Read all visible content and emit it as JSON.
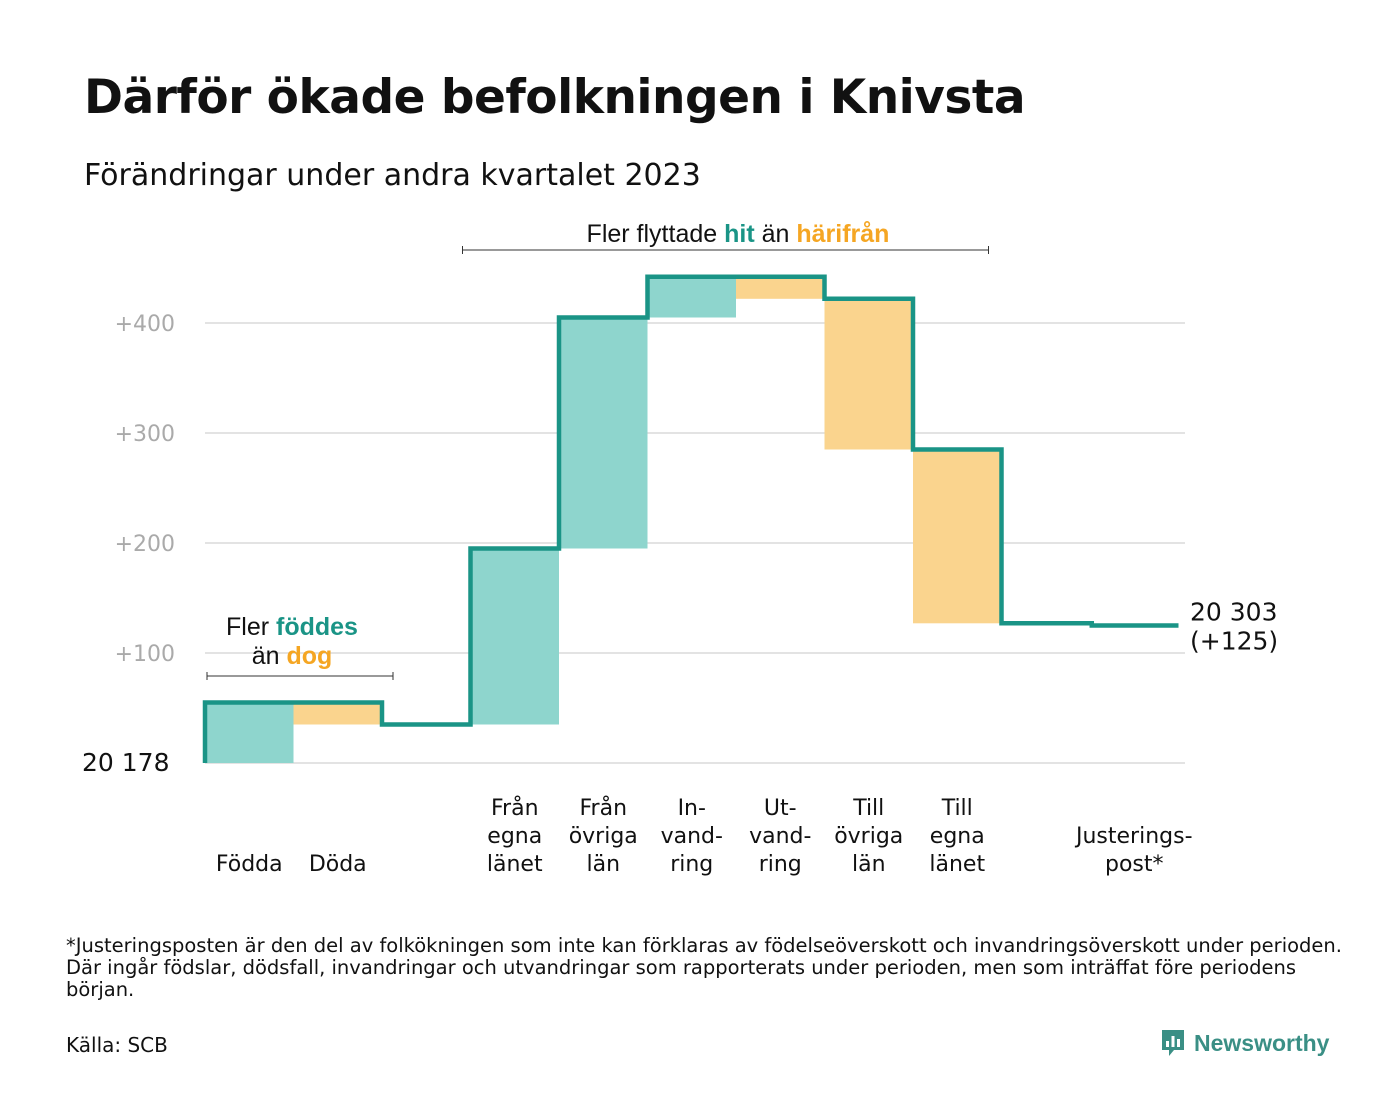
{
  "title": "Därför ökade befolkningen i Knivsta",
  "subtitle": "Förändringar under andra kvartalet 2023",
  "footnote": "*Justeringsposten är den del av folkökningen som inte kan förklaras av födelseöverskott och invandringsöverskott under perioden. Där ingår födslar, dödsfall, invandringar och utvandringar som rapporterats under perioden, men som inträffat före periodens början.",
  "source": "Källa: SCB",
  "logo": {
    "text": "Newsworthy",
    "icon": "bar-chart-speech-icon"
  },
  "colors": {
    "line": "#1a9486",
    "increase": "#8ed5cd",
    "decrease": "#fad48e",
    "grid": "#e3e3e3",
    "teal_text": "#1a9486",
    "orange_text": "#f5a623"
  },
  "chart_data": {
    "type": "waterfall",
    "start_label": "20  178",
    "end_label_line1": "20 303",
    "end_label_line2": "(+125)",
    "ylim": [
      0,
      440
    ],
    "yticks": [
      {
        "value": 100,
        "label": "+100"
      },
      {
        "value": 200,
        "label": "+200"
      },
      {
        "value": 300,
        "label": "+300"
      },
      {
        "value": 400,
        "label": "+400"
      }
    ],
    "grid": true,
    "steps": [
      {
        "label": [
          "Födda"
        ],
        "change": 55,
        "kind": "increase"
      },
      {
        "label": [
          "Döda"
        ],
        "change": -20,
        "kind": "decrease"
      },
      {
        "label": [],
        "change": 0,
        "kind": "gap"
      },
      {
        "label": [
          "Från",
          "egna",
          "länet"
        ],
        "change": 160,
        "kind": "increase"
      },
      {
        "label": [
          "Från",
          "övriga",
          "län"
        ],
        "change": 210,
        "kind": "increase"
      },
      {
        "label": [
          "In-",
          "vand-",
          "ring"
        ],
        "change": 37,
        "kind": "increase"
      },
      {
        "label": [
          "Ut-",
          "vand-",
          "ring"
        ],
        "change": -20,
        "kind": "decrease"
      },
      {
        "label": [
          "Till",
          "övriga",
          "län"
        ],
        "change": -137,
        "kind": "decrease"
      },
      {
        "label": [
          "Till",
          "egna",
          "länet"
        ],
        "change": -158,
        "kind": "decrease"
      },
      {
        "label": [],
        "change": 0,
        "kind": "gap"
      },
      {
        "label": [
          "Justerings-",
          "post*"
        ],
        "change": -2,
        "kind": "adjust"
      }
    ],
    "annotations": [
      {
        "parts": [
          {
            "text": "Fler flyttade ",
            "style": "plain"
          },
          {
            "text": "hit",
            "style": "teal"
          },
          {
            "text": " än ",
            "style": "plain"
          },
          {
            "text": "härifrån",
            "style": "orange"
          }
        ]
      },
      {
        "parts": [
          {
            "text": "Fler ",
            "style": "plain"
          },
          {
            "text": "föddes",
            "style": "teal"
          }
        ],
        "parts2": [
          {
            "text": "än ",
            "style": "plain"
          },
          {
            "text": "dog",
            "style": "orange"
          }
        ]
      }
    ]
  }
}
